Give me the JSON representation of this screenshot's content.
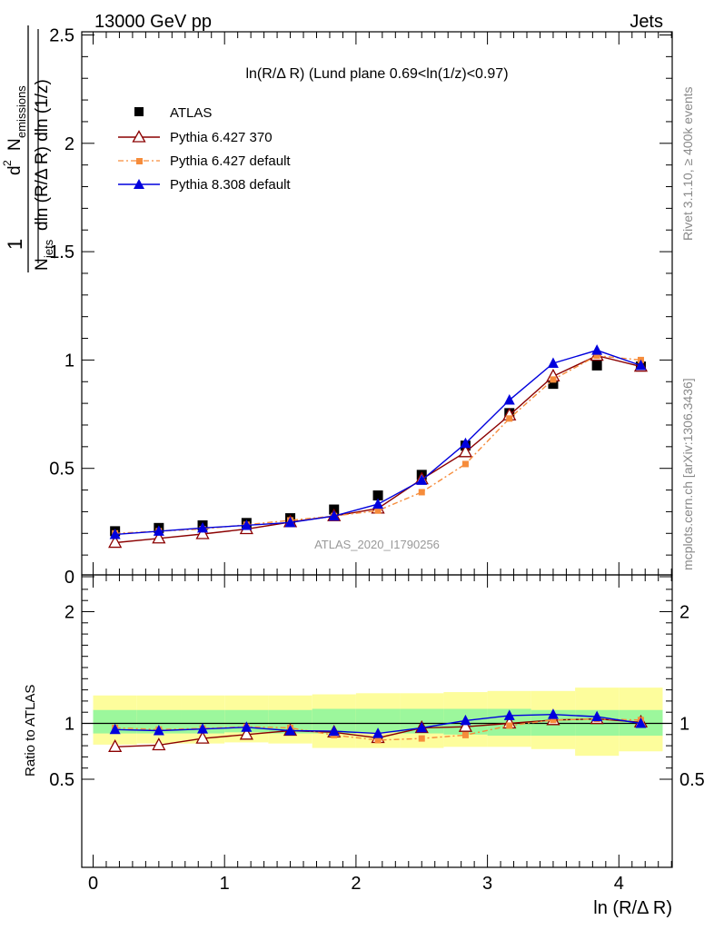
{
  "header": {
    "energy_label": "13000 GeV pp",
    "category_label": "Jets"
  },
  "side_labels": {
    "rivet": "Rivet 3.1.10, ≥ 400k events",
    "mcplots": "mcplots.cern.ch [arXiv:1306.3436]"
  },
  "watermark": "ATLAS_2020_I1790256",
  "colors": {
    "atlas": "#000000",
    "py6_370": "#8b0000",
    "py6_default": "#f68c3b",
    "py8_default": "#0000dd",
    "band_inner": "#9cf79c",
    "band_outer": "#fdfd9c"
  },
  "chart_data": {
    "type": "line",
    "title": "ln(R/Δ R) (Lund plane 0.69<ln(1/z)<0.97)",
    "xlabel": "ln (R/Δ R)",
    "ylabel": "1/N_jets dln (R/Δ R) dln (1/z) d² N_emissions",
    "ylabel_parts": {
      "numerator": "1",
      "d2": "d",
      "sup2": "2",
      "N": "N",
      "emissions": "emissions",
      "Njets_N": "N",
      "jets": "jets",
      "tail": "dln (R/Δ R) dln (1/z)"
    },
    "ratio_ylabel": "Ratio to ATLAS",
    "xlim": [
      -0.1,
      4.4
    ],
    "ylim": [
      0,
      2.5
    ],
    "ratio_ylim": [
      0.4,
      2.3
    ],
    "x_ticks": [
      "0",
      "1",
      "2",
      "3",
      "4"
    ],
    "y_ticks": [
      "0",
      "0.5",
      "1",
      "1.5",
      "2",
      "2.5"
    ],
    "ratio_ticks": [
      "0.5",
      "1",
      "2"
    ],
    "x": [
      0.167,
      0.5,
      0.833,
      1.167,
      1.5,
      1.833,
      2.167,
      2.5,
      2.833,
      3.167,
      3.5,
      3.833,
      4.167
    ],
    "legend_position": "top-left",
    "series": [
      {
        "name": "ATLAS",
        "marker": "square",
        "values": [
          0.21,
          0.225,
          0.237,
          0.248,
          0.27,
          0.31,
          0.375,
          0.47,
          0.605,
          0.755,
          0.89,
          0.975,
          0.97
        ]
      },
      {
        "name": "Pythia 6.427 370",
        "marker": "open-triangle",
        "values": [
          0.157,
          0.177,
          0.197,
          0.22,
          0.252,
          0.28,
          0.315,
          0.45,
          0.575,
          0.745,
          0.925,
          1.02,
          0.97
        ]
      },
      {
        "name": "Pythia 6.427 default",
        "marker": "small-square",
        "dashed": true,
        "values": [
          0.2,
          0.21,
          0.22,
          0.24,
          0.26,
          0.28,
          0.305,
          0.39,
          0.52,
          0.73,
          0.91,
          1.02,
          1.0
        ]
      },
      {
        "name": "Pythia 8.308 default",
        "marker": "triangle",
        "values": [
          0.195,
          0.21,
          0.225,
          0.237,
          0.25,
          0.28,
          0.335,
          0.445,
          0.615,
          0.815,
          0.985,
          1.045,
          0.975
        ]
      }
    ],
    "ratio_series": [
      {
        "name": "Pythia 6.427 370",
        "values": [
          0.79,
          0.805,
          0.865,
          0.9,
          0.935,
          0.92,
          0.87,
          0.96,
          0.97,
          1.0,
          1.03,
          1.04,
          1.01
        ]
      },
      {
        "name": "Pythia 6.427 default",
        "values": [
          0.96,
          0.945,
          0.955,
          0.97,
          0.96,
          0.895,
          0.85,
          0.865,
          0.895,
          0.98,
          1.03,
          1.04,
          1.03
        ]
      },
      {
        "name": "Pythia 8.308 default",
        "values": [
          0.945,
          0.935,
          0.95,
          0.965,
          0.935,
          0.93,
          0.91,
          0.96,
          1.025,
          1.07,
          1.08,
          1.06,
          1.0
        ]
      }
    ],
    "ratio_band": {
      "x_edges": [
        0.0,
        0.333,
        0.667,
        1.0,
        1.333,
        1.667,
        2.0,
        2.333,
        2.667,
        3.0,
        3.333,
        3.667,
        4.0,
        4.333
      ],
      "inner_low": [
        0.91,
        0.91,
        0.91,
        0.92,
        0.91,
        0.91,
        0.92,
        0.91,
        0.9,
        0.89,
        0.89,
        0.89,
        0.89
      ],
      "inner_high": [
        1.12,
        1.12,
        1.12,
        1.12,
        1.12,
        1.13,
        1.13,
        1.13,
        1.13,
        1.13,
        1.12,
        1.12,
        1.12
      ],
      "outer_low": [
        0.81,
        0.82,
        0.82,
        0.83,
        0.82,
        0.78,
        0.78,
        0.78,
        0.79,
        0.79,
        0.77,
        0.71,
        0.75
      ],
      "outer_high": [
        1.25,
        1.25,
        1.25,
        1.25,
        1.25,
        1.26,
        1.27,
        1.27,
        1.28,
        1.29,
        1.29,
        1.32,
        1.32
      ]
    }
  }
}
